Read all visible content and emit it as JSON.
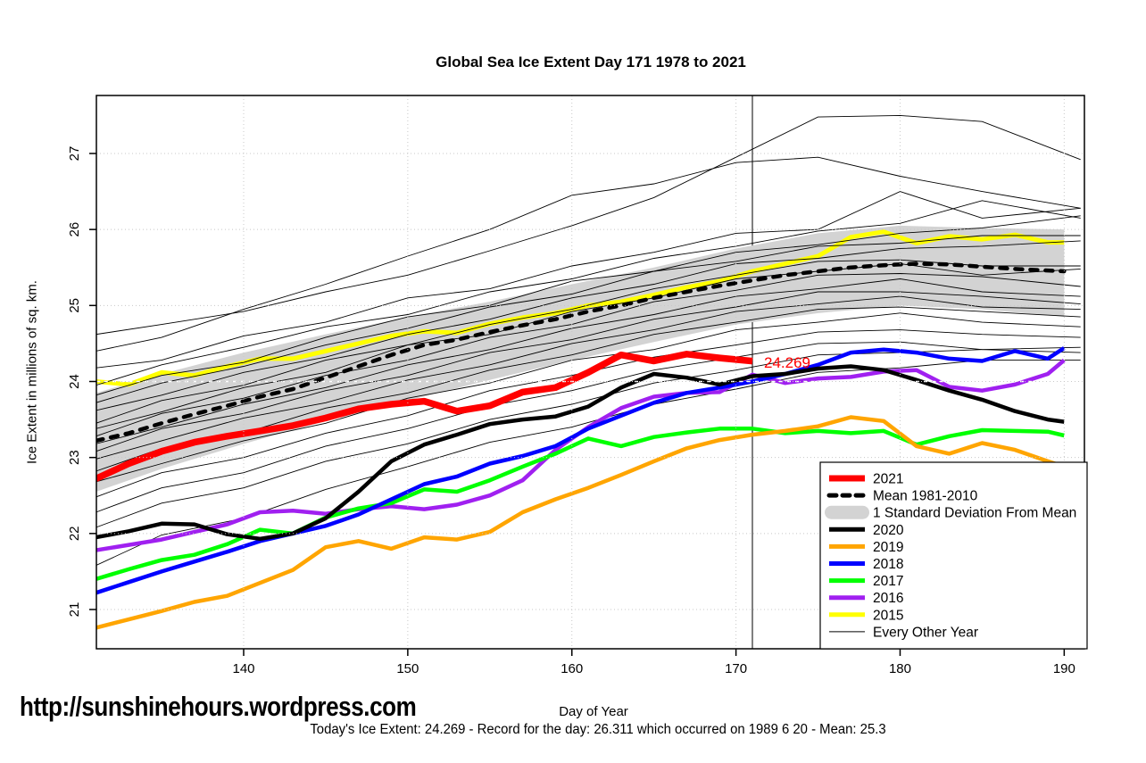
{
  "page": {
    "watermark": "http://sunshinehours.wordpress.com",
    "footer_note": "Today's Ice Extent: 24.269  - Record for the day: 26.311 which occurred on 1989 6 20  - Mean: 25.3"
  },
  "chart_data": {
    "type": "line",
    "title": "Global Sea Ice Extent Day 171 1978 to 2021",
    "xlabel": "Day of Year",
    "ylabel": "Ice Extent in millions of sq. km.",
    "xlim": [
      131.1,
      191.3
    ],
    "ylim": [
      20.5,
      27.8
    ],
    "xticks": [
      140,
      150,
      160,
      170,
      180,
      190
    ],
    "yticks": [
      21,
      22,
      23,
      24,
      25,
      26,
      27
    ],
    "grid": "dotted-gray",
    "gridline_color": "#c8c8c8",
    "vline_day": 171,
    "white_dashed_hline": 24,
    "annotation": {
      "text": "24.269",
      "day": 171.6,
      "value": 24.25,
      "color": "#FF0000"
    },
    "today_value": 24.269,
    "record_value": 26.311,
    "record_date": "1989 6 20",
    "mean_value": 25.3,
    "band": {
      "label": "1 Standard Deviation From Mean",
      "color": "#D3D3D3",
      "days": [
        131,
        135,
        140,
        145,
        150,
        155,
        160,
        165,
        170,
        175,
        180,
        185,
        190
      ],
      "top": [
        23.85,
        24.1,
        24.38,
        24.62,
        24.85,
        25.05,
        25.28,
        25.5,
        25.75,
        25.95,
        26.05,
        26.02,
        26.0
      ],
      "bottom": [
        22.55,
        22.85,
        23.18,
        23.48,
        23.75,
        24.02,
        24.28,
        24.52,
        24.75,
        24.9,
        25.0,
        24.95,
        24.85
      ]
    },
    "days_main": [
      131,
      133,
      135,
      137,
      139,
      141,
      143,
      145,
      147,
      149,
      151,
      153,
      155,
      157,
      159,
      161,
      163,
      165,
      167,
      169,
      171,
      173,
      175,
      177,
      179,
      181,
      183,
      185,
      187,
      189,
      190
    ],
    "days_2021": [
      131,
      133,
      135,
      137,
      139,
      141,
      143,
      145,
      147,
      149,
      151,
      153,
      155,
      157,
      159,
      161,
      163,
      165,
      167,
      169,
      171
    ],
    "series": [
      {
        "name": "2015",
        "color": "#FFFF00",
        "width": 5,
        "values": [
          24.0,
          23.96,
          24.12,
          24.08,
          24.2,
          24.3,
          24.3,
          24.4,
          24.5,
          24.6,
          24.66,
          24.64,
          24.76,
          24.84,
          24.9,
          25.0,
          25.05,
          25.14,
          25.24,
          25.32,
          25.45,
          25.55,
          25.65,
          25.9,
          25.97,
          25.82,
          25.91,
          25.87,
          25.93,
          25.83,
          25.83
        ]
      },
      {
        "name": "Mean 1981-2010",
        "color": "#000000",
        "width": 4.5,
        "dashed": true,
        "values": [
          23.22,
          23.32,
          23.45,
          23.57,
          23.68,
          23.8,
          23.9,
          24.05,
          24.2,
          24.35,
          24.48,
          24.55,
          24.65,
          24.74,
          24.82,
          24.92,
          25.0,
          25.1,
          25.18,
          25.26,
          25.33,
          25.4,
          25.45,
          25.5,
          25.53,
          25.55,
          25.54,
          25.51,
          25.48,
          25.46,
          25.45
        ]
      },
      {
        "name": "2016",
        "color": "#A020F0",
        "width": 4.5,
        "values": [
          21.78,
          21.85,
          21.92,
          22.02,
          22.12,
          22.28,
          22.3,
          22.26,
          22.32,
          22.36,
          22.32,
          22.38,
          22.5,
          22.7,
          23.1,
          23.4,
          23.65,
          23.8,
          23.85,
          23.86,
          24.09,
          23.98,
          24.04,
          24.06,
          24.13,
          24.15,
          23.93,
          23.88,
          23.96,
          24.1,
          24.28
        ]
      },
      {
        "name": "2017",
        "color": "#00FF00",
        "width": 4.5,
        "values": [
          21.4,
          21.53,
          21.65,
          21.72,
          21.86,
          22.05,
          22.0,
          22.21,
          22.33,
          22.4,
          22.58,
          22.55,
          22.7,
          22.88,
          23.05,
          23.25,
          23.15,
          23.27,
          23.33,
          23.38,
          23.38,
          23.32,
          23.35,
          23.32,
          23.35,
          23.17,
          23.28,
          23.36,
          23.35,
          23.34,
          23.29
        ]
      },
      {
        "name": "2018",
        "color": "#0000FF",
        "width": 4.5,
        "values": [
          21.22,
          21.36,
          21.5,
          21.63,
          21.76,
          21.9,
          22.0,
          22.1,
          22.25,
          22.45,
          22.65,
          22.75,
          22.92,
          23.02,
          23.15,
          23.38,
          23.55,
          23.72,
          23.85,
          23.92,
          24.0,
          24.1,
          24.22,
          24.38,
          24.42,
          24.38,
          24.3,
          24.27,
          24.4,
          24.3,
          24.44
        ]
      },
      {
        "name": "2019",
        "color": "#FFA500",
        "width": 4.5,
        "values": [
          20.76,
          20.87,
          20.98,
          21.1,
          21.18,
          21.35,
          21.52,
          21.82,
          21.9,
          21.8,
          21.95,
          21.92,
          22.02,
          22.28,
          22.45,
          22.6,
          22.77,
          22.95,
          23.12,
          23.23,
          23.3,
          23.35,
          23.41,
          23.53,
          23.48,
          23.15,
          23.05,
          23.19,
          23.1,
          22.95,
          22.88
        ]
      },
      {
        "name": "2020",
        "color": "#000000",
        "width": 4.5,
        "values": [
          21.95,
          22.03,
          22.13,
          22.12,
          21.99,
          21.93,
          22.0,
          22.2,
          22.55,
          22.95,
          23.17,
          23.3,
          23.44,
          23.5,
          23.54,
          23.67,
          23.92,
          24.1,
          24.05,
          23.96,
          24.07,
          24.1,
          24.17,
          24.2,
          24.15,
          24.02,
          23.88,
          23.76,
          23.61,
          23.5,
          23.47
        ]
      },
      {
        "name": "2021",
        "color": "#FF0000",
        "width": 7.5,
        "ends_at_day": 171,
        "values": [
          22.72,
          22.92,
          23.08,
          23.2,
          23.28,
          23.35,
          23.42,
          23.52,
          23.64,
          23.7,
          23.74,
          23.61,
          23.68,
          23.86,
          23.92,
          24.12,
          24.35,
          24.27,
          24.36,
          24.31,
          24.269
        ]
      }
    ],
    "every_other_year": {
      "label": "Every Other Year",
      "color": "#000000",
      "width": 0.9,
      "days": [
        131,
        135,
        140,
        145,
        150,
        155,
        160,
        165,
        170,
        175,
        180,
        185,
        191
      ],
      "lines": [
        [
          24.62,
          24.75,
          24.92,
          25.18,
          25.4,
          25.72,
          26.05,
          26.42,
          26.95,
          27.48,
          27.5,
          27.42,
          26.92
        ],
        [
          24.4,
          24.58,
          24.95,
          25.28,
          25.65,
          26.0,
          26.45,
          26.6,
          26.88,
          26.95,
          26.7,
          26.5,
          26.28
        ],
        [
          24.18,
          24.28,
          24.6,
          24.78,
          25.1,
          25.22,
          25.52,
          25.7,
          25.95,
          26.0,
          26.5,
          26.15,
          26.28
        ],
        [
          23.95,
          24.22,
          24.45,
          24.72,
          24.88,
          25.18,
          25.35,
          25.62,
          25.78,
          25.98,
          26.08,
          26.38,
          26.15
        ],
        [
          23.82,
          24.08,
          24.25,
          24.58,
          24.85,
          25.0,
          25.32,
          25.45,
          25.7,
          25.8,
          25.95,
          26.02,
          26.18
        ],
        [
          23.72,
          23.98,
          24.2,
          24.48,
          24.7,
          24.98,
          25.15,
          25.45,
          25.58,
          25.78,
          25.82,
          25.92,
          25.92
        ],
        [
          23.62,
          23.82,
          24.12,
          24.32,
          24.62,
          24.82,
          25.1,
          25.28,
          25.55,
          25.62,
          25.75,
          25.78,
          25.85
        ],
        [
          23.45,
          23.75,
          23.95,
          24.28,
          24.48,
          24.75,
          24.95,
          25.22,
          25.4,
          25.58,
          25.6,
          25.52,
          25.52
        ],
        [
          23.38,
          23.6,
          23.92,
          24.12,
          24.48,
          24.62,
          24.92,
          25.1,
          25.35,
          25.45,
          25.55,
          25.4,
          25.48
        ],
        [
          23.28,
          23.58,
          23.78,
          24.08,
          24.28,
          24.58,
          24.75,
          25.05,
          25.2,
          25.4,
          25.42,
          25.38,
          25.25
        ],
        [
          23.18,
          23.4,
          23.7,
          23.92,
          24.22,
          24.42,
          24.7,
          24.88,
          25.12,
          25.22,
          25.35,
          25.18,
          25.12
        ],
        [
          23.08,
          23.38,
          23.58,
          23.88,
          24.08,
          24.38,
          24.55,
          24.82,
          24.98,
          25.18,
          25.18,
          25.12,
          25.02
        ],
        [
          22.98,
          23.22,
          23.52,
          23.72,
          24.02,
          24.22,
          24.5,
          24.68,
          24.92,
          25.02,
          25.12,
          24.98,
          24.95
        ],
        [
          22.82,
          23.12,
          23.32,
          23.65,
          23.85,
          24.15,
          24.35,
          24.62,
          24.78,
          24.95,
          24.98,
          24.92,
          24.85
        ],
        [
          22.68,
          22.92,
          23.22,
          23.45,
          23.78,
          23.98,
          24.28,
          24.42,
          24.68,
          24.78,
          24.9,
          24.78,
          24.72
        ],
        [
          22.48,
          22.8,
          23.0,
          23.32,
          23.55,
          23.88,
          24.08,
          24.32,
          24.48,
          24.65,
          24.68,
          24.62,
          24.58
        ],
        [
          22.28,
          22.6,
          22.8,
          23.15,
          23.38,
          23.68,
          23.88,
          24.15,
          24.32,
          24.5,
          24.52,
          24.42,
          24.38
        ],
        [
          22.08,
          22.4,
          22.6,
          22.95,
          23.18,
          23.5,
          23.7,
          23.98,
          24.15,
          24.35,
          24.38,
          24.42,
          24.45
        ],
        [
          21.58,
          21.98,
          22.2,
          22.58,
          22.88,
          23.2,
          23.4,
          23.7,
          23.9,
          24.12,
          24.18,
          24.28,
          24.28
        ]
      ]
    },
    "legend_position": "bottom-right",
    "legend_entries": [
      {
        "label": "2021",
        "swatch": "line",
        "color": "#FF0000",
        "thick": 7
      },
      {
        "label": "Mean 1981-2010",
        "swatch": "dashed-line",
        "color": "#000000",
        "thick": 5
      },
      {
        "label": "1 Standard Deviation From Mean",
        "swatch": "band",
        "color": "#D3D3D3"
      },
      {
        "label": "2020",
        "swatch": "line",
        "color": "#000000",
        "thick": 5
      },
      {
        "label": "2019",
        "swatch": "line",
        "color": "#FFA500",
        "thick": 5
      },
      {
        "label": "2018",
        "swatch": "line",
        "color": "#0000FF",
        "thick": 5
      },
      {
        "label": "2017",
        "swatch": "line",
        "color": "#00FF00",
        "thick": 5
      },
      {
        "label": "2016",
        "swatch": "line",
        "color": "#A020F0",
        "thick": 5
      },
      {
        "label": "2015",
        "swatch": "line",
        "color": "#FFFF00",
        "thick": 5
      },
      {
        "label": "Every Other Year",
        "swatch": "line",
        "color": "#000000",
        "thick": 1
      }
    ]
  }
}
